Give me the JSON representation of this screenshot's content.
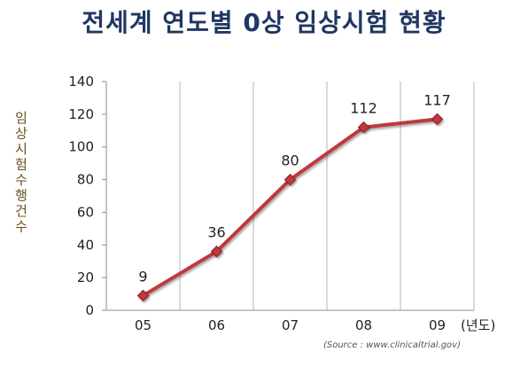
{
  "chart_data": {
    "type": "line",
    "title": "전세계 연도별 0상 임상시험 현황",
    "ylabel": "임상시험수행건수",
    "x_unit": "(년도)",
    "source": "(Source : www.clinicaltrial.gov)",
    "categories": [
      "05",
      "06",
      "07",
      "08",
      "09"
    ],
    "series": [
      {
        "values": [
          9,
          36,
          80,
          112,
          117
        ],
        "color": "#c0393b"
      }
    ],
    "data_labels": [
      "9",
      "36",
      "80",
      "112",
      "117"
    ],
    "ylim": [
      0,
      140
    ],
    "yticks": [
      "0",
      "20",
      "40",
      "60",
      "80",
      "100",
      "120",
      "140"
    ],
    "grid": "vertical",
    "legend": "none"
  }
}
